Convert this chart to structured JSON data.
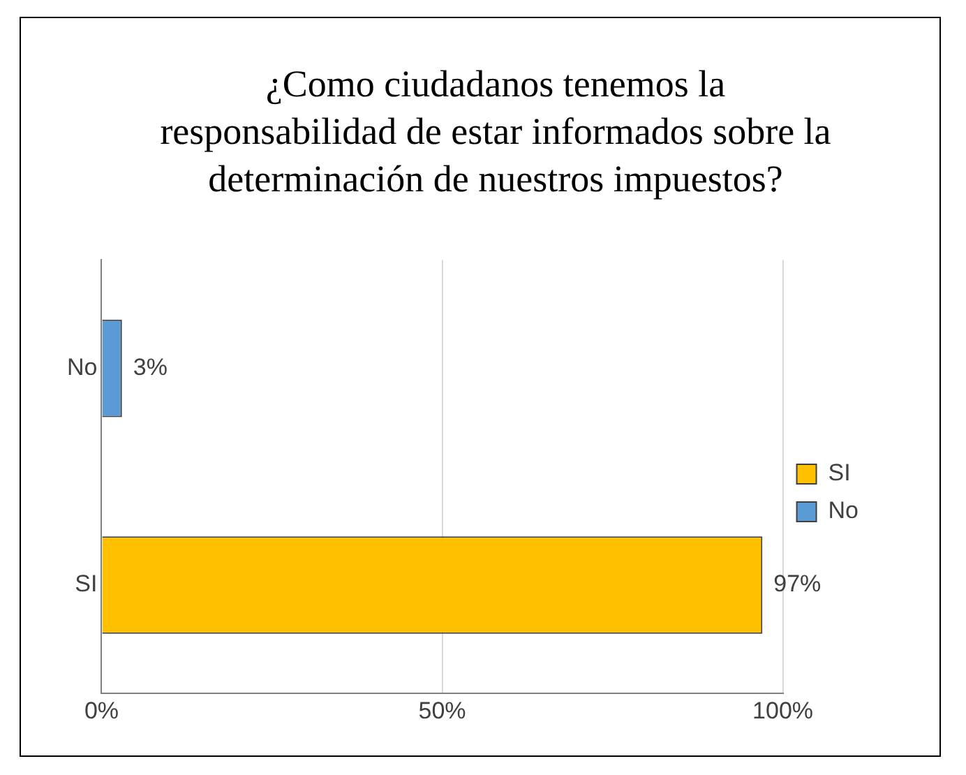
{
  "chart_data": {
    "type": "bar",
    "orientation": "horizontal",
    "title": "¿Como ciudadanos tenemos la responsabilidad de estar informados sobre la determinación de nuestros impuestos?",
    "categories": [
      "No",
      "SI"
    ],
    "series": [
      {
        "name": "SI",
        "color": "#ffc000",
        "values": [
          null,
          97
        ],
        "value_labels": [
          null,
          "97%"
        ]
      },
      {
        "name": "No",
        "color": "#5b9bd5",
        "values": [
          3,
          null
        ],
        "value_labels": [
          "3%",
          null
        ]
      }
    ],
    "xlim": [
      0,
      100
    ],
    "xticks": [
      {
        "value": 0,
        "label": "0%"
      },
      {
        "value": 50,
        "label": "50%"
      },
      {
        "value": 100,
        "label": "100%"
      }
    ],
    "grid": "x",
    "legend": "right"
  }
}
